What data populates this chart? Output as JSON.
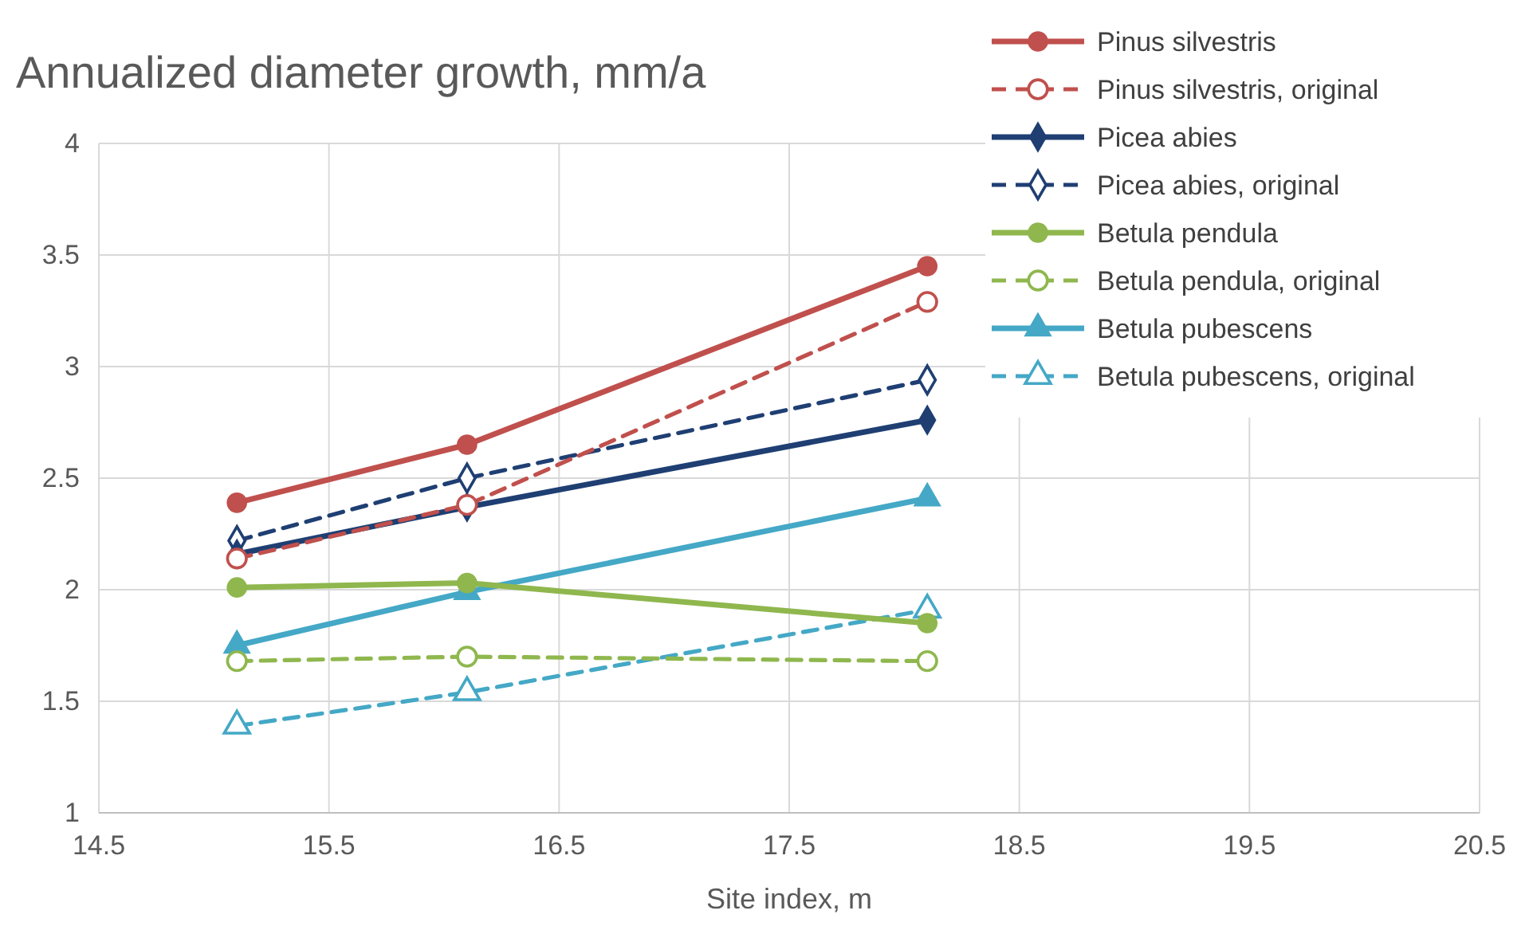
{
  "chart_data": {
    "type": "line",
    "title": "Annualized diameter growth, mm/a",
    "xlabel": "Site index, m",
    "x": [
      15.1,
      16.1,
      18.1
    ],
    "xlim": [
      14.5,
      20.5
    ],
    "xticks": [
      14.5,
      15.5,
      16.5,
      17.5,
      18.5,
      19.5,
      20.5
    ],
    "ylim": [
      1,
      4
    ],
    "yticks": [
      1,
      1.5,
      2,
      2.5,
      3,
      3.5,
      4
    ],
    "grid": true,
    "legend": "top right",
    "series": [
      {
        "name": "Pinus silvestris",
        "color": "#c0504d",
        "marker": "circle",
        "line_style": "solid",
        "values": [
          2.39,
          2.65,
          3.45
        ]
      },
      {
        "name": "Pinus silvestris, original",
        "color": "#c0504d",
        "marker": "circle",
        "line_style": "dashed",
        "values": [
          2.14,
          2.38,
          3.29
        ]
      },
      {
        "name": "Picea abies",
        "color": "#1f3f73",
        "marker": "diamond",
        "line_style": "solid",
        "values": [
          2.16,
          2.37,
          2.76
        ]
      },
      {
        "name": "Picea abies, original",
        "color": "#1f3f73",
        "marker": "diamond",
        "line_style": "dashed",
        "values": [
          2.22,
          2.5,
          2.94
        ]
      },
      {
        "name": "Betula pendula",
        "color": "#8fb74e",
        "marker": "circle",
        "line_style": "solid",
        "values": [
          2.01,
          2.03,
          1.85
        ]
      },
      {
        "name": "Betula pendula, original",
        "color": "#8fb74e",
        "marker": "circle",
        "line_style": "dashed",
        "values": [
          1.68,
          1.7,
          1.68
        ]
      },
      {
        "name": "Betula pubescens",
        "color": "#44a8c6",
        "marker": "triangle",
        "line_style": "solid",
        "values": [
          1.75,
          1.99,
          2.41
        ]
      },
      {
        "name": "Betula pubescens, original",
        "color": "#44a8c6",
        "marker": "triangle",
        "line_style": "dashed",
        "values": [
          1.39,
          1.54,
          1.91
        ]
      }
    ]
  }
}
